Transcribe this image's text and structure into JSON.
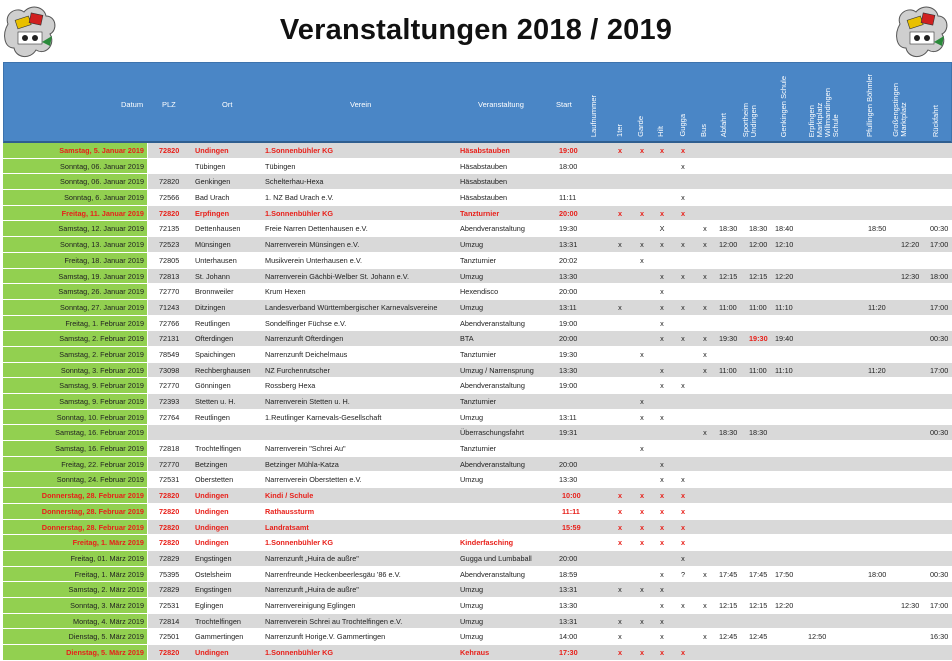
{
  "title": "Veranstaltungen 2018 / 2019",
  "logos": {
    "left": "club-logo-icon",
    "right": "club-logo-icon"
  },
  "colors": {
    "header_bg": "#4a86c6",
    "date_bg": "#92d050",
    "row_gray": "#d9d9d9",
    "highlight_red": "#e8201a"
  },
  "headers": {
    "datum": "Datum",
    "plz": "PLZ",
    "ort": "Ort",
    "verein": "Verein",
    "veranstaltung": "Veranstaltung",
    "start": "Start",
    "laufnummer": "Laufnummer",
    "1ter": "1ter",
    "garde": "Garde",
    "hilt": "Hilt",
    "gugga": "Gugga",
    "bus": "Bus",
    "abfahrt": "Abfahrt",
    "sportheim_1": "Sportheim",
    "sportheim_2": "Undingen",
    "genkingen": "Genkingen Schule",
    "erpfingen_1": "Erpfingen",
    "erpfingen_2": "Marktplatz",
    "erpfingen_3": "Willmandingen",
    "erpfingen_4": "Schule",
    "pfullingen": "Pfullingen Böhmler",
    "grossengstingen_1": "Großengstingen",
    "grossengstingen_2": "Marktplatz",
    "rueckfahrt": "Rückfahrt"
  },
  "rows": [
    {
      "datum": "Samstag, 5. Januar 2019",
      "plz": "72820",
      "ort": "Undingen",
      "verein": "1.Sonnenbühler KG",
      "ver": "Häsabstauben",
      "start": "19:00",
      "m1": "x",
      "m2": "x",
      "m3": "x",
      "m4": "x",
      "bus": "",
      "abf": "",
      "sp": "",
      "gen": "",
      "erp": "",
      "pf": "",
      "gr": "",
      "rueck": "",
      "red": true,
      "gray": true
    },
    {
      "datum": "Sonntag, 06. Januar 2019",
      "plz": "",
      "ort": "Tübingen",
      "verein": "Tübingen",
      "ver": "Häsabstauben",
      "start": "18:00",
      "m1": "",
      "m2": "",
      "m3": "",
      "m4": "x",
      "bus": "",
      "abf": "",
      "sp": "",
      "gen": "",
      "erp": "",
      "pf": "",
      "gr": "",
      "rueck": "",
      "red": false,
      "gray": false
    },
    {
      "datum": "Sonntag, 06. Januar 2019",
      "plz": "72820",
      "ort": "Genkingen",
      "verein": "Schelterhau-Hexa",
      "ver": "Häsabstauben",
      "start": "",
      "m1": "",
      "m2": "",
      "m3": "",
      "m4": "",
      "bus": "",
      "abf": "",
      "sp": "",
      "gen": "",
      "erp": "",
      "pf": "",
      "gr": "",
      "rueck": "",
      "red": false,
      "gray": true
    },
    {
      "datum": "Sonntag, 6. Januar 2019",
      "plz": "72566",
      "ort": "Bad Urach",
      "verein": "1. NZ Bad Urach e.V.",
      "ver": "Häsabstauben",
      "start": "11:11",
      "m1": "",
      "m2": "",
      "m3": "",
      "m4": "x",
      "bus": "",
      "abf": "",
      "sp": "",
      "gen": "",
      "erp": "",
      "pf": "",
      "gr": "",
      "rueck": "",
      "red": false,
      "gray": false
    },
    {
      "datum": "Freitag, 11. Januar 2019",
      "plz": "72820",
      "ort": "Erpfingen",
      "verein": "1.Sonnenbühler KG",
      "ver": "Tanzturnier",
      "start": "20:00",
      "m1": "x",
      "m2": "x",
      "m3": "x",
      "m4": "x",
      "bus": "",
      "abf": "",
      "sp": "",
      "gen": "",
      "erp": "",
      "pf": "",
      "gr": "",
      "rueck": "",
      "red": true,
      "gray": true
    },
    {
      "datum": "Samstag, 12. Januar 2019",
      "plz": "72135",
      "ort": "Dettenhausen",
      "verein": "Freie Narren Dettenhausen e.V.",
      "ver": "Abendveranstaltung",
      "start": "19:30",
      "m1": "",
      "m2": "",
      "m3": "X",
      "m4": "",
      "bus": "x",
      "abf": "18:30",
      "sp": "18:30",
      "gen": "18:40",
      "erp": "",
      "pf": "18:50",
      "gr": "",
      "rueck": "00:30",
      "red": false,
      "gray": false
    },
    {
      "datum": "Sonntag, 13. Januar 2019",
      "plz": "72523",
      "ort": "Münsingen",
      "verein": "Narrenverein Münsingen e.V.",
      "ver": "Umzug",
      "start": "13:31",
      "m1": "x",
      "m2": "x",
      "m3": "x",
      "m4": "x",
      "bus": "x",
      "abf": "12:00",
      "sp": "12:00",
      "gen": "12:10",
      "erp": "",
      "pf": "",
      "gr": "12:20",
      "rueck": "17:00",
      "red": false,
      "gray": true
    },
    {
      "datum": "Freitag, 18. Januar 2019",
      "plz": "72805",
      "ort": "Unterhausen",
      "verein": "Musikverein Unterhausen e.V.",
      "ver": "Tanzturnier",
      "start": "20:02",
      "m1": "",
      "m2": "x",
      "m3": "",
      "m4": "",
      "bus": "",
      "abf": "",
      "sp": "",
      "gen": "",
      "erp": "",
      "pf": "",
      "gr": "",
      "rueck": "",
      "red": false,
      "gray": false
    },
    {
      "datum": "Samstag, 19. Januar 2019",
      "plz": "72813",
      "ort": "St. Johann",
      "verein": "Narrenverein Gächbi-Welber St. Johann e.V.",
      "ver": "Umzug",
      "start": "13:30",
      "m1": "",
      "m2": "",
      "m3": "x",
      "m4": "x",
      "bus": "x",
      "abf": "12:15",
      "sp": "12:15",
      "gen": "12:20",
      "erp": "",
      "pf": "",
      "gr": "12:30",
      "rueck": "18:00",
      "red": false,
      "gray": true
    },
    {
      "datum": "Samstag, 26. Januar 2019",
      "plz": "72770",
      "ort": "Bronnweiler",
      "verein": "Krum Hexen",
      "ver": "Hexendisco",
      "start": "20:00",
      "m1": "",
      "m2": "",
      "m3": "x",
      "m4": "",
      "bus": "",
      "abf": "",
      "sp": "",
      "gen": "",
      "erp": "",
      "pf": "",
      "gr": "",
      "rueck": "",
      "red": false,
      "gray": false
    },
    {
      "datum": "Sonntag, 27. Januar 2019",
      "plz": "71243",
      "ort": "Ditzingen",
      "verein": "Landesverband Württembergischer Karnevalsvereine",
      "ver": "Umzug",
      "start": "13:11",
      "m1": "x",
      "m2": "",
      "m3": "x",
      "m4": "x",
      "bus": "x",
      "abf": "11:00",
      "sp": "11:00",
      "gen": "11:10",
      "erp": "",
      "pf": "11:20",
      "gr": "",
      "rueck": "17:00",
      "red": false,
      "gray": true
    },
    {
      "datum": "Freitag, 1. Februar 2019",
      "plz": "72766",
      "ort": "Reutlingen",
      "verein": "Sondelfinger Füchse e.V.",
      "ver": "Abendveranstaltung",
      "start": "19:00",
      "m1": "",
      "m2": "",
      "m3": "x",
      "m4": "",
      "bus": "",
      "abf": "",
      "sp": "",
      "gen": "",
      "erp": "",
      "pf": "",
      "gr": "",
      "rueck": "",
      "red": false,
      "gray": false
    },
    {
      "datum": "Samstag, 2. Februar 2019",
      "plz": "72131",
      "ort": "Ofterdingen",
      "verein": "Narrenzunft Ofterdingen",
      "ver": "BTA",
      "start": "20:00",
      "m1": "",
      "m2": "",
      "m3": "x",
      "m4": "x",
      "bus": "x",
      "abf": "19:30",
      "sp": "19:30",
      "gen": "19:40",
      "erp": "",
      "pf": "",
      "gr": "",
      "rueck": "00:30",
      "red": false,
      "gray": true,
      "sp_red": true
    },
    {
      "datum": "Samstag, 2. Februar 2019",
      "plz": "78549",
      "ort": "Spaichingen",
      "verein": "Narrenzunft Deichelmaus",
      "ver": "Tanzturnier",
      "start": "19:30",
      "m1": "",
      "m2": "x",
      "m3": "",
      "m4": "",
      "bus": "x",
      "abf": "",
      "sp": "",
      "gen": "",
      "erp": "",
      "pf": "",
      "gr": "",
      "rueck": "",
      "red": false,
      "gray": false
    },
    {
      "datum": "Sonntag, 3. Februar 2019",
      "plz": "73098",
      "ort": "Rechberghausen",
      "verein": "NZ Furchenrutscher",
      "ver": "Umzug / Narrensprung",
      "start": "13:30",
      "m1": "",
      "m2": "",
      "m3": "x",
      "m4": "",
      "bus": "x",
      "abf": "11:00",
      "sp": "11:00",
      "gen": "11:10",
      "erp": "",
      "pf": "11:20",
      "gr": "",
      "rueck": "17:00",
      "red": false,
      "gray": true
    },
    {
      "datum": "Samstag, 9. Februar 2019",
      "plz": "72770",
      "ort": "Gönningen",
      "verein": "Rossberg Hexa",
      "ver": "Abendveranstaltung",
      "start": "19:00",
      "m1": "",
      "m2": "",
      "m3": "x",
      "m4": "x",
      "bus": "",
      "abf": "",
      "sp": "",
      "gen": "",
      "erp": "",
      "pf": "",
      "gr": "",
      "rueck": "",
      "red": false,
      "gray": false
    },
    {
      "datum": "Samstag, 9. Februar 2019",
      "plz": "72393",
      "ort": "Stetten u. H.",
      "verein": "Narrenverein Stetten u. H.",
      "ver": "Tanzturnier",
      "start": "",
      "m1": "",
      "m2": "x",
      "m3": "",
      "m4": "",
      "bus": "",
      "abf": "",
      "sp": "",
      "gen": "",
      "erp": "",
      "pf": "",
      "gr": "",
      "rueck": "",
      "red": false,
      "gray": true
    },
    {
      "datum": "Sonntag, 10. Februar 2019",
      "plz": "72764",
      "ort": "Reutlingen",
      "verein": "1.Reutlinger Karnevals-Gesellschaft",
      "ver": "Umzug",
      "start": "13:11",
      "m1": "",
      "m2": "x",
      "m3": "x",
      "m4": "",
      "bus": "",
      "abf": "",
      "sp": "",
      "gen": "",
      "erp": "",
      "pf": "",
      "gr": "",
      "rueck": "",
      "red": false,
      "gray": false
    },
    {
      "datum": "Samstag, 16. Februar 2019",
      "plz": "",
      "ort": "",
      "verein": "",
      "ver": "Überraschungsfahrt",
      "start": "19:31",
      "m1": "",
      "m2": "",
      "m3": "",
      "m4": "",
      "bus": "x",
      "abf": "18:30",
      "sp": "18:30",
      "gen": "",
      "erp": "",
      "pf": "",
      "gr": "",
      "rueck": "00:30",
      "red": false,
      "gray": true
    },
    {
      "datum": "Samstag, 16. Februar 2019",
      "plz": "72818",
      "ort": "Trochtelfingen",
      "verein": "Narrenverein \"Schrei Au\"",
      "ver": "Tanzturnier",
      "start": "",
      "m1": "",
      "m2": "x",
      "m3": "",
      "m4": "",
      "bus": "",
      "abf": "",
      "sp": "",
      "gen": "",
      "erp": "",
      "pf": "",
      "gr": "",
      "rueck": "",
      "red": false,
      "gray": false
    },
    {
      "datum": "Freitag, 22. Februar 2019",
      "plz": "72770",
      "ort": "Betzingen",
      "verein": "Betzinger Mühla-Katza",
      "ver": "Abendveranstaltung",
      "start": "20:00",
      "m1": "",
      "m2": "",
      "m3": "x",
      "m4": "",
      "bus": "",
      "abf": "",
      "sp": "",
      "gen": "",
      "erp": "",
      "pf": "",
      "gr": "",
      "rueck": "",
      "red": false,
      "gray": true
    },
    {
      "datum": "Sonntag, 24. Februar 2019",
      "plz": "72531",
      "ort": "Oberstetten",
      "verein": "Narrenverein Oberstetten e.V.",
      "ver": "Umzug",
      "start": "13:30",
      "m1": "",
      "m2": "",
      "m3": "x",
      "m4": "x",
      "bus": "",
      "abf": "",
      "sp": "",
      "gen": "",
      "erp": "",
      "pf": "",
      "gr": "",
      "rueck": "",
      "red": false,
      "gray": false
    },
    {
      "datum": "Donnerstag, 28. Februar 2019",
      "plz": "72820",
      "ort": "Undingen",
      "verein": "Kindi / Schule",
      "ver": "",
      "start": "10:00",
      "m1": "x",
      "m2": "x",
      "m3": "x",
      "m4": "x",
      "bus": "",
      "abf": "",
      "sp": "",
      "gen": "",
      "erp": "",
      "pf": "",
      "gr": "",
      "rueck": "",
      "red": true,
      "gray": true,
      "shift": true
    },
    {
      "datum": "Donnerstag, 28. Februar 2019",
      "plz": "72820",
      "ort": "Undingen",
      "verein": "Rathaussturm",
      "ver": "",
      "start": "11:11",
      "m1": "x",
      "m2": "x",
      "m3": "x",
      "m4": "x",
      "bus": "",
      "abf": "",
      "sp": "",
      "gen": "",
      "erp": "",
      "pf": "",
      "gr": "",
      "rueck": "",
      "red": true,
      "gray": false,
      "shift": true
    },
    {
      "datum": "Donnerstag, 28. Februar 2019",
      "plz": "72820",
      "ort": "Undingen",
      "verein": "Landratsamt",
      "ver": "",
      "start": "15:59",
      "m1": "x",
      "m2": "x",
      "m3": "x",
      "m4": "x",
      "bus": "",
      "abf": "",
      "sp": "",
      "gen": "",
      "erp": "",
      "pf": "",
      "gr": "",
      "rueck": "",
      "red": true,
      "gray": true,
      "shift": true
    },
    {
      "datum": "Freitag, 1. März 2019",
      "plz": "72820",
      "ort": "Undingen",
      "verein": "1.Sonnenbühler KG",
      "ver": "Kinderfasching",
      "start": "",
      "m1": "x",
      "m2": "x",
      "m3": "x",
      "m4": "x",
      "bus": "",
      "abf": "",
      "sp": "",
      "gen": "",
      "erp": "",
      "pf": "",
      "gr": "",
      "rueck": "",
      "red": true,
      "gray": false,
      "shift": true
    },
    {
      "datum": "Freitag, 01. März 2019",
      "plz": "72829",
      "ort": "Engstingen",
      "verein": "Narrenzunft „Huira de außre\"",
      "ver": "Gugga und Lumbaball",
      "start": "20:00",
      "m1": "",
      "m2": "",
      "m3": "",
      "m4": "x",
      "bus": "",
      "abf": "",
      "sp": "",
      "gen": "",
      "erp": "",
      "pf": "",
      "gr": "",
      "rueck": "",
      "red": false,
      "gray": true
    },
    {
      "datum": "Freitag, 1. März 2019",
      "plz": "75395",
      "ort": "Ostelsheim",
      "verein": "Narrenfreunde Heckenbeerlesgäu '86 e.V.",
      "ver": "Abendveranstaltung",
      "start": "18:59",
      "m1": "",
      "m2": "",
      "m3": "x",
      "m4": "?",
      "bus": "x",
      "abf": "17:45",
      "sp": "17:45",
      "gen": "17:50",
      "erp": "",
      "pf": "18:00",
      "gr": "",
      "rueck": "00:30",
      "red": false,
      "gray": false
    },
    {
      "datum": "Samstag, 2. März 2019",
      "plz": "72829",
      "ort": "Engstingen",
      "verein": "Narrenzunft „Huira de außre\"",
      "ver": "Umzug",
      "start": "13:31",
      "m1": "x",
      "m2": "x",
      "m3": "x",
      "m4": "",
      "bus": "",
      "abf": "",
      "sp": "",
      "gen": "",
      "erp": "",
      "pf": "",
      "gr": "",
      "rueck": "",
      "red": false,
      "gray": true
    },
    {
      "datum": "Sonntag, 3. März 2019",
      "plz": "72531",
      "ort": "Eglingen",
      "verein": "Narrenvereinigung Eglingen",
      "ver": "Umzug",
      "start": "13:30",
      "m1": "",
      "m2": "",
      "m3": "x",
      "m4": "x",
      "bus": "x",
      "abf": "12:15",
      "sp": "12:15",
      "gen": "12:20",
      "erp": "",
      "pf": "",
      "gr": "12:30",
      "rueck": "17:00",
      "red": false,
      "gray": false
    },
    {
      "datum": "Montag, 4. März 2019",
      "plz": "72814",
      "ort": "Trochtelfingen",
      "verein": "Narrenverein Schrei au Trochtelfingen e.V.",
      "ver": "Umzug",
      "start": "13:31",
      "m1": "x",
      "m2": "x",
      "m3": "x",
      "m4": "",
      "bus": "",
      "abf": "",
      "sp": "",
      "gen": "",
      "erp": "",
      "pf": "",
      "gr": "",
      "rueck": "",
      "red": false,
      "gray": true
    },
    {
      "datum": "Dienstag, 5. März 2019",
      "plz": "72501",
      "ort": "Gammertingen",
      "verein": "Narrenzunft Horige.V. Gammertingen",
      "ver": "Umzug",
      "start": "14:00",
      "m1": "x",
      "m2": "",
      "m3": "x",
      "m4": "",
      "bus": "x",
      "abf": "12:45",
      "sp": "12:45",
      "gen": "",
      "erp": "12:50",
      "pf": "",
      "gr": "",
      "rueck": "16:30",
      "red": false,
      "gray": false
    },
    {
      "datum": "Dienstag, 5. März 2019",
      "plz": "72820",
      "ort": "Undingen",
      "verein": "1.Sonnenbühler KG",
      "ver": "Kehraus",
      "start": "17:30",
      "m1": "x",
      "m2": "x",
      "m3": "x",
      "m4": "x",
      "bus": "",
      "abf": "",
      "sp": "",
      "gen": "",
      "erp": "",
      "pf": "",
      "gr": "",
      "rueck": "",
      "red": true,
      "gray": true
    }
  ]
}
